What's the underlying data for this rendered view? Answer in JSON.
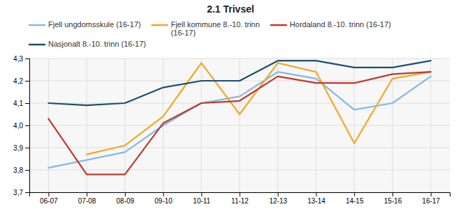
{
  "chart_data": {
    "type": "line",
    "title": "2.1 Trivsel",
    "categories": [
      "06-07",
      "07-08",
      "08-09",
      "09-10",
      "10-11",
      "11-12",
      "12-13",
      "13-14",
      "14-15",
      "15-16",
      "16-17"
    ],
    "series": [
      {
        "name": "Fjell ungdomsskule (16-17)",
        "color": "#82b8e8",
        "values": [
          3.81,
          null,
          3.88,
          4.0,
          4.1,
          4.13,
          4.24,
          4.21,
          4.07,
          4.1,
          4.22
        ]
      },
      {
        "name": "Fjell kommune 8.-10. trinn\n(16-17)",
        "color": "#f5a623",
        "values": [
          null,
          3.87,
          3.91,
          4.04,
          4.28,
          4.05,
          4.28,
          4.24,
          3.92,
          4.21,
          4.24
        ]
      },
      {
        "name": "Hordaland 8.-10. trinn (16-17)",
        "color": "#c0392b",
        "values": [
          4.03,
          3.78,
          3.78,
          4.01,
          4.1,
          4.11,
          4.22,
          4.19,
          4.19,
          4.23,
          4.24
        ]
      },
      {
        "name": "Nasjonalt 8.-10. trinn (16-17)",
        "color": "#1a4f72",
        "values": [
          4.1,
          4.09,
          4.1,
          4.17,
          4.2,
          4.2,
          4.29,
          4.29,
          4.26,
          4.26,
          4.29
        ]
      }
    ],
    "ylim": [
      3.7,
      4.3
    ],
    "yticks": [
      {
        "value": 3.7,
        "label": "3,7"
      },
      {
        "value": 3.8,
        "label": "3,8"
      },
      {
        "value": 3.9,
        "label": "3,9"
      },
      {
        "value": 4.0,
        "label": "4,0"
      },
      {
        "value": 4.1,
        "label": "4,1"
      },
      {
        "value": 4.2,
        "label": "4,2"
      },
      {
        "value": 4.3,
        "label": "4,3"
      }
    ],
    "grid": true,
    "legend": "upper left"
  }
}
